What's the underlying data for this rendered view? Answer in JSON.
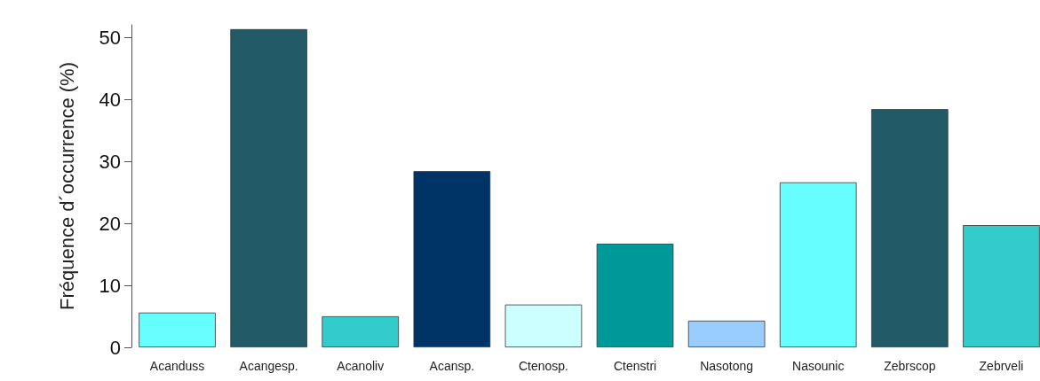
{
  "chart_data": {
    "type": "bar",
    "ylabel": "Fréquence d´occurrence (%)",
    "categories": [
      "Acanduss",
      "Acangesp.",
      "Acanoliv",
      "Acansp.",
      "Ctenosp.",
      "Ctenstri",
      "Nasotong",
      "Nasounic",
      "Zebrscop",
      "Zebrveli"
    ],
    "values": [
      5.6,
      51.3,
      5.0,
      28.4,
      6.9,
      16.7,
      4.3,
      26.6,
      38.4,
      19.7
    ],
    "colors": [
      "#66ffff",
      "#225a68",
      "#33cccc",
      "#003366",
      "#ccffff",
      "#009999",
      "#99ccff",
      "#66ffff",
      "#225a68",
      "#33cccc"
    ],
    "ylim": [
      0,
      52
    ],
    "yticks": [
      0,
      10,
      20,
      30,
      40,
      50
    ],
    "grid": false
  }
}
